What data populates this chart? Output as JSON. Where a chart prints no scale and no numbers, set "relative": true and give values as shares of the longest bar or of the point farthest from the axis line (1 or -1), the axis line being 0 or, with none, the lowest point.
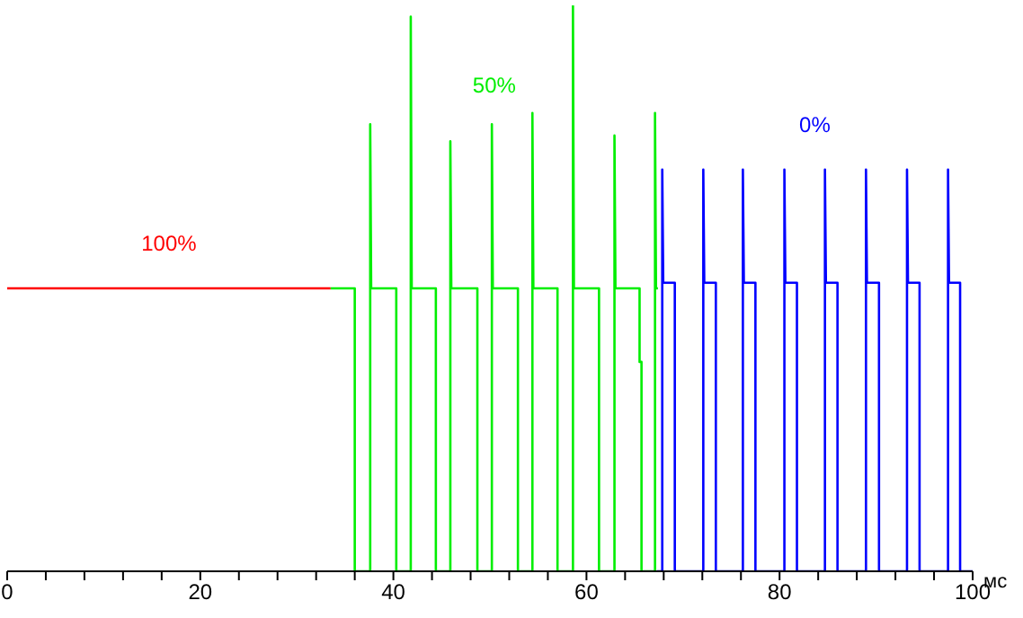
{
  "chart_data": {
    "type": "line",
    "relative": true,
    "xlabel": "мс",
    "xlim": [
      0,
      100
    ],
    "xticks": [
      0,
      {
        "value": 4,
        "label": null
      },
      {
        "value": 8,
        "label": null
      },
      {
        "value": 12,
        "label": null
      },
      {
        "value": 16,
        "label": null
      },
      20,
      {
        "value": 24,
        "label": null
      },
      {
        "value": 28,
        "label": null
      },
      {
        "value": 32,
        "label": null
      },
      {
        "value": 36,
        "label": null
      },
      40,
      {
        "value": 44,
        "label": null
      },
      {
        "value": 48,
        "label": null
      },
      {
        "value": 52,
        "label": null
      },
      {
        "value": 56,
        "label": null
      },
      60,
      {
        "value": 64,
        "label": null
      },
      {
        "value": 68,
        "label": null
      },
      {
        "value": 72,
        "label": null
      },
      {
        "value": 76,
        "label": null
      },
      80,
      {
        "value": 84,
        "label": null
      },
      {
        "value": 88,
        "label": null
      },
      {
        "value": 92,
        "label": null
      },
      {
        "value": 96,
        "label": null
      },
      100
    ],
    "tick_labels": "x",
    "grid": false,
    "marker": "none",
    "line_style": "solid",
    "series": [
      {
        "name": "100%",
        "color": "#ff0000",
        "x": [
          0,
          10,
          20,
          33.5
        ],
        "values": [
          0.5,
          0.5,
          0.5,
          0.5
        ]
      },
      {
        "name": "50%",
        "color": "#00ee00",
        "x": [
          33.5,
          36.0,
          36.0,
          37.6,
          37.6,
          37.7,
          40.3,
          40.3,
          41.8,
          41.8,
          41.9,
          44.4,
          44.4,
          45.9,
          45.9,
          46.0,
          48.7,
          48.7,
          50.2,
          50.2,
          50.3,
          52.9,
          52.9,
          54.4,
          54.4,
          54.5,
          57.0,
          57.0,
          58.6,
          58.6,
          58.7,
          61.3,
          61.3,
          62.9,
          62.9,
          63.0,
          65.5,
          65.5,
          65.7,
          65.7,
          67.1,
          67.1,
          67.2,
          67.4
        ],
        "values": [
          0.5,
          0.5,
          0,
          0,
          0.79,
          0.5,
          0.5,
          0,
          0,
          0.98,
          0.5,
          0.5,
          0,
          0,
          0.76,
          0.5,
          0.5,
          0,
          0,
          0.79,
          0.5,
          0.5,
          0,
          0,
          0.81,
          0.5,
          0.5,
          0,
          0,
          1,
          0.5,
          0.5,
          0,
          0,
          0.77,
          0.5,
          0.5,
          0.37,
          0.37,
          0,
          0,
          0.81,
          0.5,
          0.5
        ]
      },
      {
        "name": "0%",
        "color": "#0000ff",
        "x": [
          67.3,
          67.85,
          67.85,
          67.95,
          69.15,
          69.15,
          72.1,
          72.1,
          72.2,
          73.4,
          73.4,
          76.2,
          76.2,
          76.3,
          77.5,
          77.5,
          80.5,
          80.5,
          80.6,
          81.8,
          81.8,
          84.7,
          84.7,
          84.8,
          86.0,
          86.0,
          88.95,
          88.95,
          89.05,
          90.3,
          90.3,
          93.2,
          93.2,
          93.3,
          94.5,
          94.5,
          97.45,
          97.45,
          97.55,
          98.7,
          98.7,
          100
        ],
        "values": [
          0,
          0,
          0.71,
          0.51,
          0.51,
          0,
          0,
          0.71,
          0.51,
          0.51,
          0,
          0,
          0.71,
          0.51,
          0.51,
          0,
          0,
          0.71,
          0.51,
          0.51,
          0,
          0,
          0.71,
          0.51,
          0.51,
          0,
          0,
          0.71,
          0.51,
          0.51,
          0,
          0,
          0.71,
          0.51,
          0.51,
          0,
          0,
          0.71,
          0.51,
          0.51,
          0,
          0
        ]
      }
    ]
  }
}
